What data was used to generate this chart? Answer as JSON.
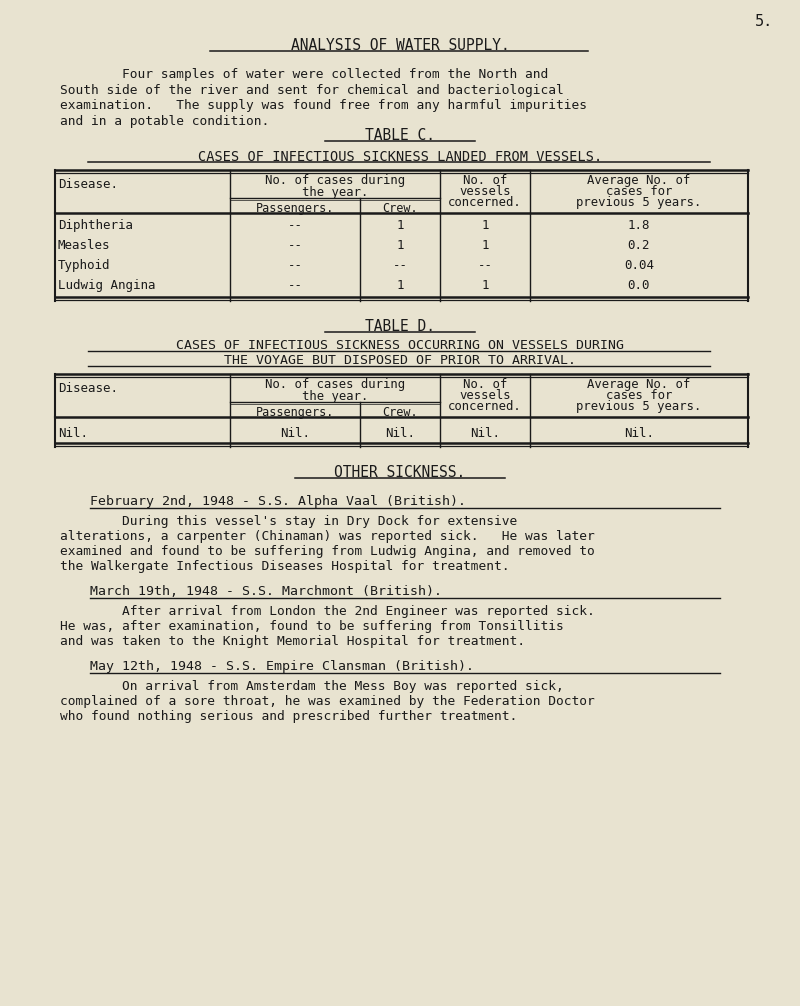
{
  "bg_color": "#e8e3d0",
  "text_color": "#1a1a1a",
  "page_number": "5.",
  "main_title": "ANALYSIS OF WATER SUPPLY.",
  "intro_text": [
    "        Four samples of water were collected from the North and",
    "South side of the river and sent for chemical and bacteriological",
    "examination.   The supply was found free from any harmful impurities",
    "and in a potable condition."
  ],
  "table_c_title": "TABLE C.",
  "table_c_subtitle": "CASES OF INFECTIOUS SICKNESS LANDED FROM VESSELS.",
  "table_c_rows": [
    [
      "Diphtheria",
      "--",
      "1",
      "1",
      "1.8"
    ],
    [
      "Measles",
      "--",
      "1",
      "1",
      "0.2"
    ],
    [
      "Typhoid",
      "--",
      "--",
      "--",
      "0.04"
    ],
    [
      "Ludwig Angina",
      "--",
      "1",
      "1",
      "0.0"
    ]
  ],
  "table_d_title": "TABLE D.",
  "table_d_subtitle1": "CASES OF INFECTIOUS SICKNESS OCCURRING ON VESSELS DURING",
  "table_d_subtitle2": "THE VOYAGE BUT DISPOSED OF PRIOR TO ARRIVAL.",
  "nil_row": [
    "Nil.",
    "Nil.",
    "Nil.",
    "Nil.",
    "Nil."
  ],
  "other_sickness_title": "OTHER SICKNESS.",
  "sections": [
    {
      "heading": "February 2nd, 1948 - S.S. Alpha Vaal (British).",
      "body": [
        "        During this vessel's stay in Dry Dock for extensive",
        "alterations, a carpenter (Chinaman) was reported sick.   He was later",
        "examined and found to be suffering from Ludwig Angina, and removed to",
        "the Walkergate Infectious Diseases Hospital for treatment."
      ]
    },
    {
      "heading": "March 19th, 1948 - S.S. Marchmont (British).",
      "body": [
        "        After arrival from London the 2nd Engineer was reported sick.",
        "He was, after examination, found to be suffering from Tonsillitis",
        "and was taken to the Knight Memorial Hospital for treatment."
      ]
    },
    {
      "heading": "May 12th, 1948 - S.S. Empire Clansman (British).",
      "body": [
        "        On arrival from Amsterdam the Mess Boy was reported sick,",
        "complained of a sore throat, he was examined by the Federation Doctor",
        "who found nothing serious and prescribed further treatment."
      ]
    }
  ]
}
